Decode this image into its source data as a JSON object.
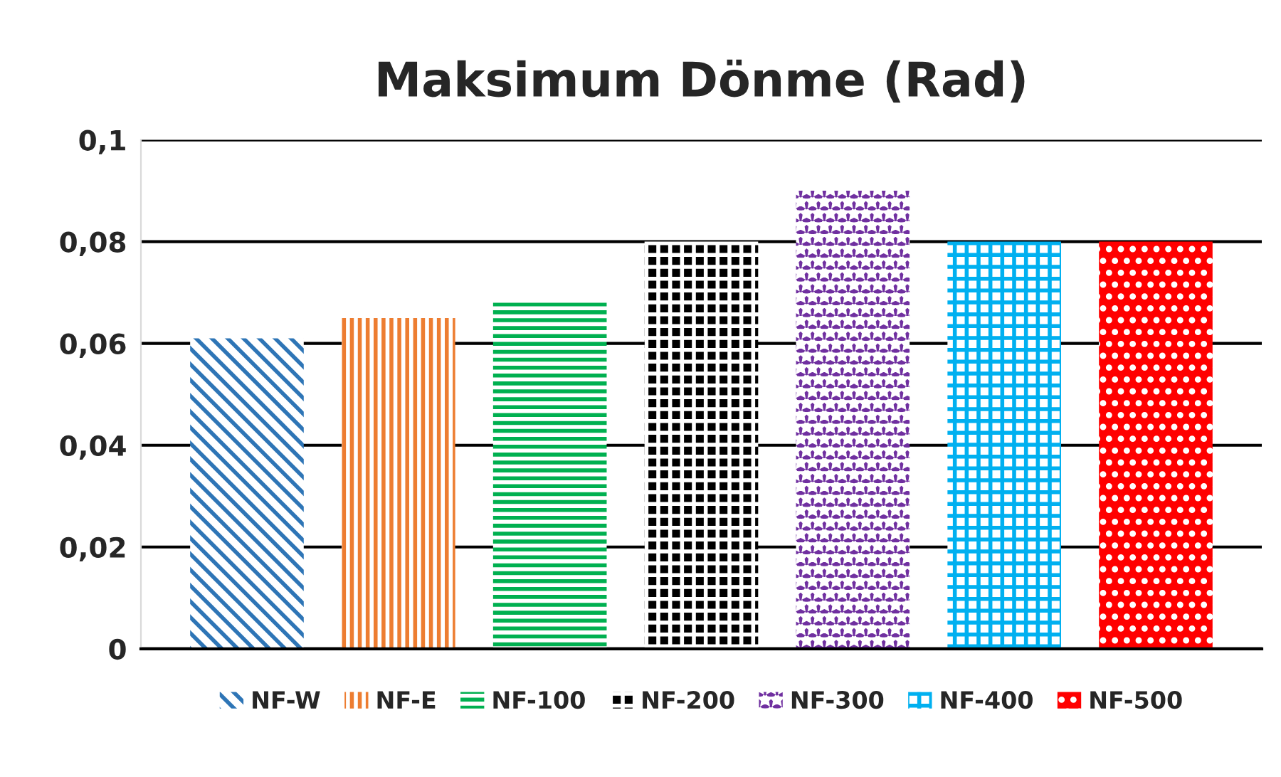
{
  "chart_data": {
    "type": "bar",
    "title": "Maksimum Dönme (Rad)",
    "categories": [
      null,
      null,
      null,
      null,
      null,
      null,
      null
    ],
    "series": [
      {
        "name": "NF-W",
        "color": "#2e75b6",
        "values": [
          0.061,
          null,
          null,
          null,
          null,
          null,
          null
        ]
      },
      {
        "name": "NF-E",
        "color": "#ed7d31",
        "values": [
          null,
          0.065,
          null,
          null,
          null,
          null,
          null
        ]
      },
      {
        "name": "NF-100",
        "color": "#00b050",
        "values": [
          null,
          null,
          0.068,
          null,
          null,
          null,
          null
        ]
      },
      {
        "name": "NF-200",
        "color": "#000000",
        "values": [
          null,
          null,
          null,
          0.08,
          null,
          null,
          null
        ]
      },
      {
        "name": "NF-300",
        "color": "#7030a0",
        "values": [
          null,
          null,
          null,
          null,
          0.09,
          null,
          null
        ]
      },
      {
        "name": "NF-400",
        "color": "#00b0f0",
        "values": [
          null,
          null,
          null,
          null,
          null,
          0.08,
          null
        ]
      },
      {
        "name": "NF-500",
        "color": "#ff0000",
        "values": [
          null,
          null,
          null,
          null,
          null,
          null,
          0.08
        ]
      }
    ],
    "ylim": [
      0,
      0.1
    ],
    "yticks": [
      {
        "value": 0,
        "label": "0"
      },
      {
        "value": 0.02,
        "label": "0,02"
      },
      {
        "value": 0.04,
        "label": "0,04"
      },
      {
        "value": 0.06,
        "label": "0,06"
      },
      {
        "value": 0.08,
        "label": "0,08"
      },
      {
        "value": 0.1,
        "label": "0,1"
      }
    ],
    "grid": "y",
    "legend": "bottom"
  }
}
